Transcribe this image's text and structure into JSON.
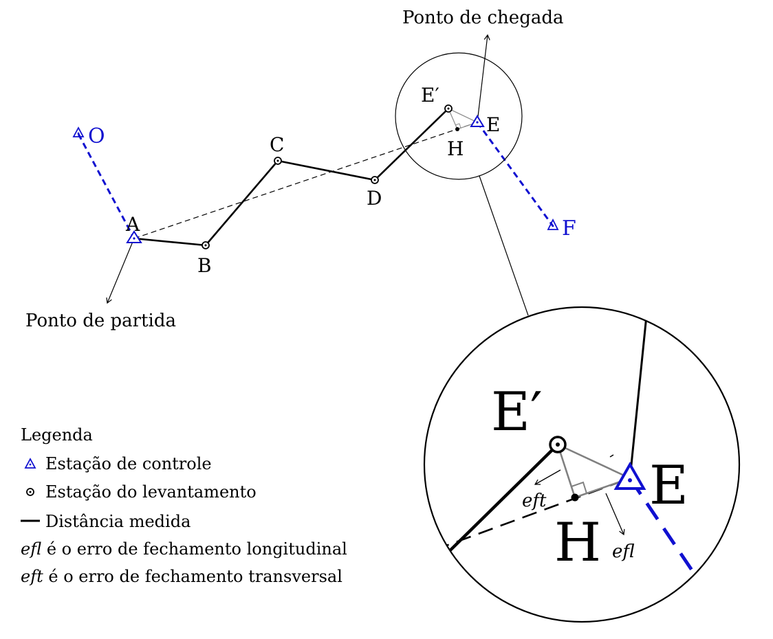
{
  "colors": {
    "control": "#1010d0",
    "traverse": "#000000",
    "error_triangle": "#808080"
  },
  "annotations": {
    "start": "Ponto de partida",
    "end": "Ponto de chegada"
  },
  "points": {
    "O": "O",
    "A": "A",
    "B": "B",
    "C": "C",
    "D": "D",
    "E_prime": "E′",
    "E": "E",
    "F": "F",
    "H": "H"
  },
  "zoom": {
    "E_prime": "E′",
    "E": "E",
    "H": "H",
    "eft": "eft",
    "efl": "efl"
  },
  "legend": {
    "title": "Legenda",
    "control_station": "Estação de controle",
    "survey_station": "Estação do levantamento",
    "measured_distance": "Distância medida",
    "efl_abbr": "efl",
    "efl_text": " é o erro de fechamento longitudinal",
    "eft_abbr": "eft",
    "eft_text": " é o erro de fechamento transversal"
  }
}
